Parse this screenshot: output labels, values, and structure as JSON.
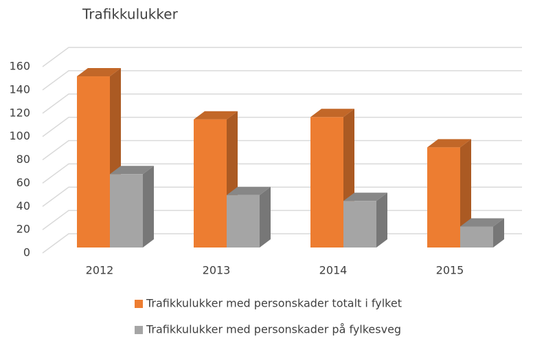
{
  "chart_data": {
    "type": "bar3d",
    "title": "Trafikkulukker",
    "categories": [
      "2012",
      "2013",
      "2014",
      "2015"
    ],
    "series": [
      {
        "name": "Trafikkulukker med personskader totalt i fylket",
        "color": "#ed7d31",
        "values": [
          147,
          110,
          112,
          86
        ]
      },
      {
        "name": "Trafikkulukker med personskader på fylkesveg",
        "color": "#a5a5a5",
        "values": [
          63,
          45,
          40,
          18
        ]
      }
    ],
    "ylim": [
      0,
      160
    ],
    "yticks": [
      0,
      20,
      40,
      60,
      80,
      100,
      120,
      140,
      160
    ],
    "grid": true,
    "legend": "bottom"
  }
}
